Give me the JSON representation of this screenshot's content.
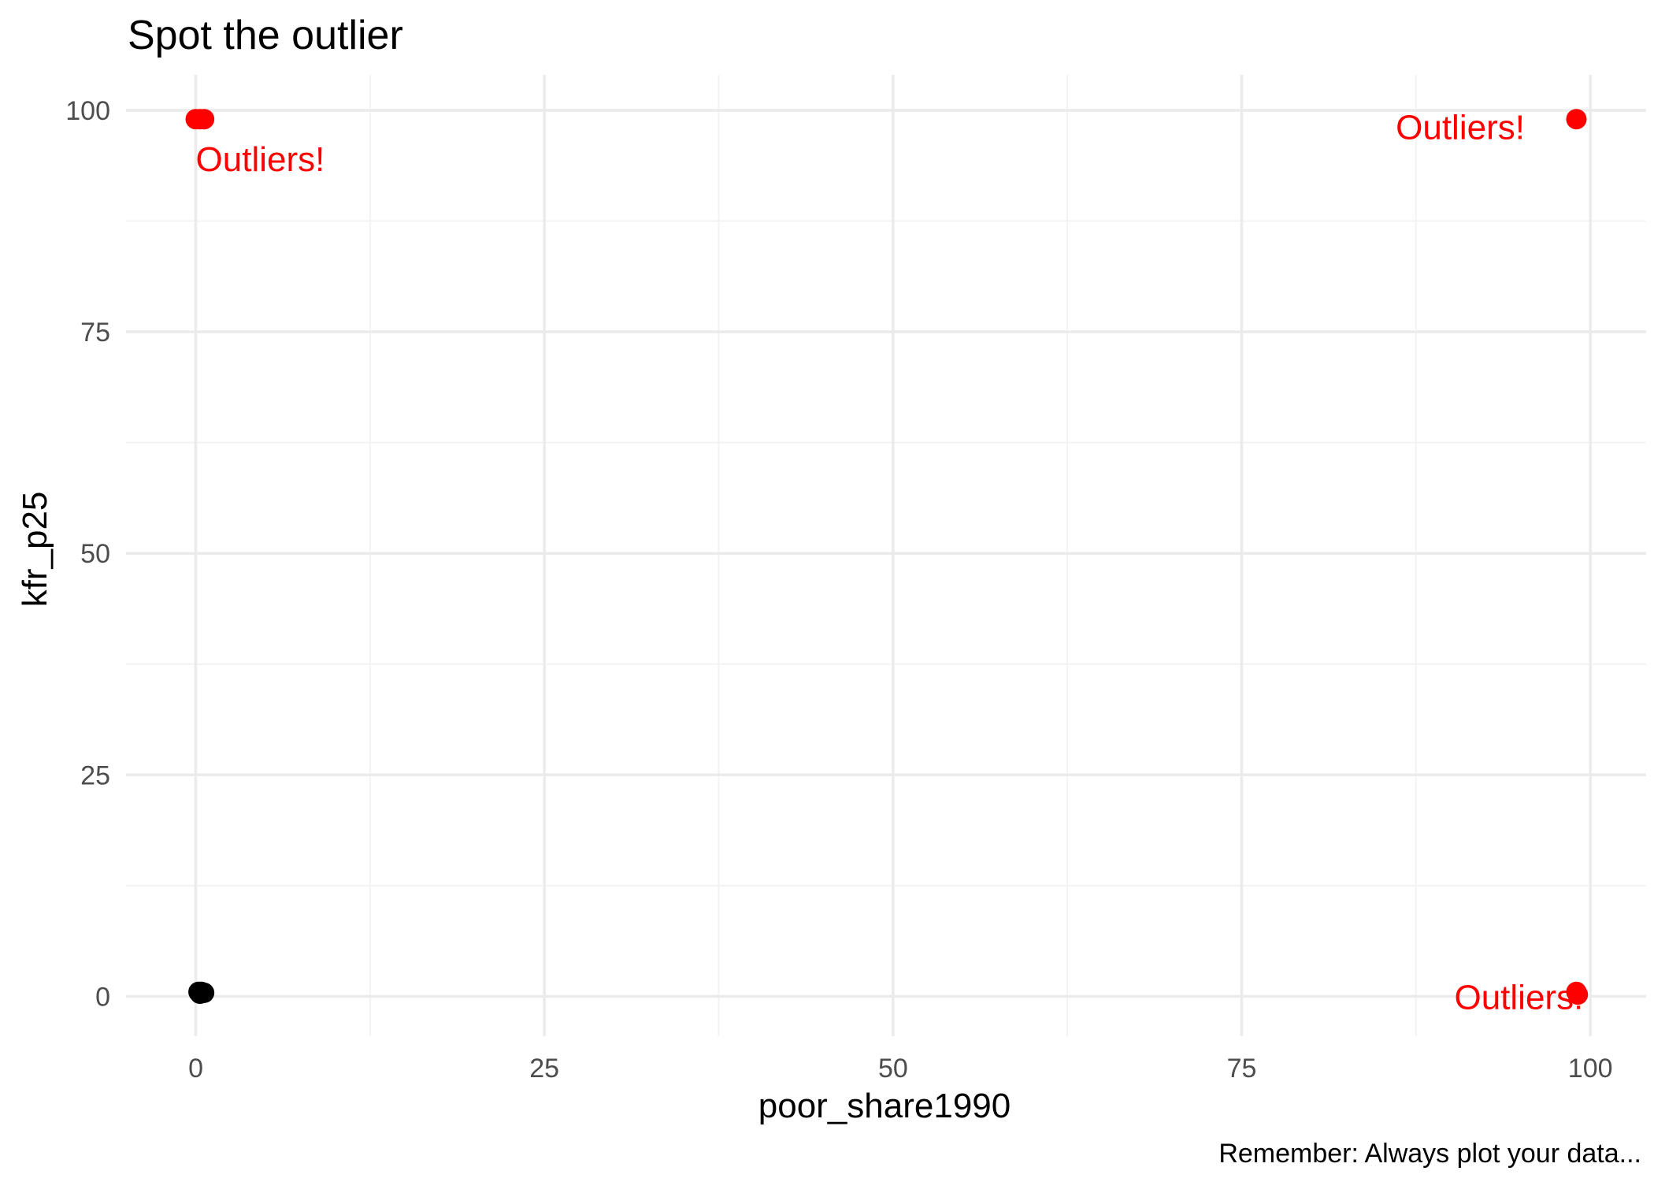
{
  "chart_data": {
    "type": "scatter",
    "title": "Spot the outlier",
    "xlabel": "poor_share1990",
    "ylabel": "kfr_p25",
    "caption": "Remember: Always plot your data...",
    "xlim": [
      -5,
      104
    ],
    "ylim": [
      -4.5,
      104
    ],
    "x_ticks": [
      0,
      25,
      50,
      75,
      100
    ],
    "y_ticks": [
      0,
      25,
      50,
      75,
      100
    ],
    "grid": true,
    "legend": "none",
    "colors": {
      "normal": "#000000",
      "outlier": "#ff0000",
      "major_grid": "#ebebeb",
      "minor_grid": "#f3f3f3"
    },
    "series": [
      {
        "color": "#000000",
        "points": [
          {
            "x": 0.2,
            "y": 0.5
          },
          {
            "x": 0.4,
            "y": 0.5
          },
          {
            "x": 0.6,
            "y": 0.4
          },
          {
            "x": 0.3,
            "y": 0.3
          }
        ]
      },
      {
        "color": "#ff0000",
        "points": [
          {
            "x": 0.0,
            "y": 99.0
          },
          {
            "x": 0.3,
            "y": 99.0
          },
          {
            "x": 0.6,
            "y": 99.0
          },
          {
            "x": 99.0,
            "y": 99.0
          },
          {
            "x": 99.0,
            "y": 0.5
          },
          {
            "x": 99.1,
            "y": 0.2
          }
        ]
      }
    ],
    "annotations": [
      {
        "text": "Outliers!",
        "x": 0.0,
        "y": 94.5,
        "anchor": "start",
        "color": "#ff0000"
      },
      {
        "text": "Outliers!",
        "x": 95.3,
        "y": 98.1,
        "anchor": "end",
        "color": "#ff0000"
      },
      {
        "text": "Outliers!",
        "x": 99.5,
        "y": -0.1,
        "anchor": "end",
        "color": "#ff0000"
      }
    ]
  }
}
